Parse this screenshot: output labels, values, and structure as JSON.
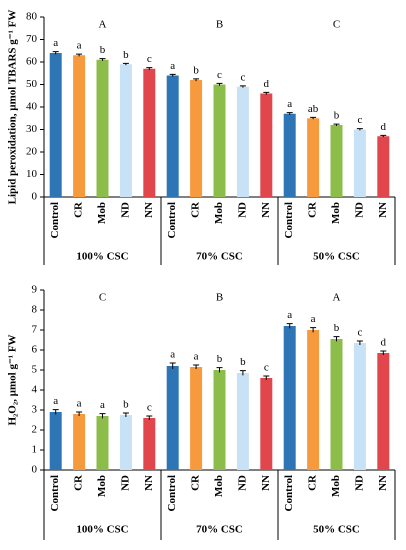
{
  "chart_data": [
    {
      "type": "bar",
      "y_label": "Lipid peroxidation, µmol TBARS g⁻¹ FW",
      "ylim": [
        0,
        80
      ],
      "yticks": [
        0,
        10,
        20,
        30,
        40,
        50,
        60,
        70,
        80
      ],
      "colors": [
        "#2e75b6",
        "#f79a3e",
        "#8cbd4a",
        "#c7e2f6",
        "#e0464b"
      ],
      "groups": [
        {
          "name": "100% CSC",
          "letter": "A",
          "categories": [
            "Control",
            "CR",
            "Mob",
            "ND",
            "NN"
          ],
          "values": [
            64,
            63,
            61,
            59,
            57
          ],
          "errors": [
            0.6,
            0.5,
            0.5,
            0.4,
            0.5
          ],
          "letters": [
            "a",
            "a",
            "b",
            "b",
            "c"
          ]
        },
        {
          "name": "70% CSC",
          "letter": "B",
          "categories": [
            "Control",
            "CR",
            "Mob",
            "ND",
            "NN"
          ],
          "values": [
            54,
            52,
            50,
            49,
            46
          ],
          "errors": [
            0.5,
            0.5,
            0.5,
            0.4,
            0.5
          ],
          "letters": [
            "a",
            "b",
            "c",
            "c",
            "d"
          ]
        },
        {
          "name": "50% CSC",
          "letter": "C",
          "categories": [
            "Control",
            "CR",
            "Mob",
            "ND",
            "NN"
          ],
          "values": [
            37,
            35,
            32,
            30,
            27
          ],
          "errors": [
            0.5,
            0.4,
            0.4,
            0.4,
            0.4
          ],
          "letters": [
            "a",
            "ab",
            "b",
            "c",
            "d"
          ]
        }
      ]
    },
    {
      "type": "bar",
      "y_label": "H₂O₂, µmol g⁻¹ FW",
      "ylim": [
        0,
        9
      ],
      "yticks": [
        0,
        1,
        2,
        3,
        4,
        5,
        6,
        7,
        8,
        9
      ],
      "colors": [
        "#2e75b6",
        "#f79a3e",
        "#8cbd4a",
        "#c7e2f6",
        "#e0464b"
      ],
      "groups": [
        {
          "name": "100% CSC",
          "letter": "C",
          "categories": [
            "Control",
            "CR",
            "Mob",
            "ND",
            "NN"
          ],
          "values": [
            2.9,
            2.8,
            2.7,
            2.75,
            2.6
          ],
          "errors": [
            0.12,
            0.1,
            0.12,
            0.1,
            0.1
          ],
          "letters": [
            "a",
            "a",
            "a",
            "b",
            "c"
          ]
        },
        {
          "name": "70% CSC",
          "letter": "B",
          "categories": [
            "Control",
            "CR",
            "Mob",
            "ND",
            "NN"
          ],
          "values": [
            5.2,
            5.15,
            5.0,
            4.85,
            4.6
          ],
          "errors": [
            0.15,
            0.1,
            0.12,
            0.12,
            0.1
          ],
          "letters": [
            "a",
            "a",
            "b",
            "b",
            "c"
          ]
        },
        {
          "name": "50% CSC",
          "letter": "A",
          "categories": [
            "Control",
            "CR",
            "Mob",
            "ND",
            "NN"
          ],
          "values": [
            7.2,
            7.0,
            6.55,
            6.35,
            5.85
          ],
          "errors": [
            0.12,
            0.12,
            0.12,
            0.1,
            0.1
          ],
          "letters": [
            "a",
            "a",
            "b",
            "c",
            "d"
          ]
        }
      ]
    }
  ]
}
